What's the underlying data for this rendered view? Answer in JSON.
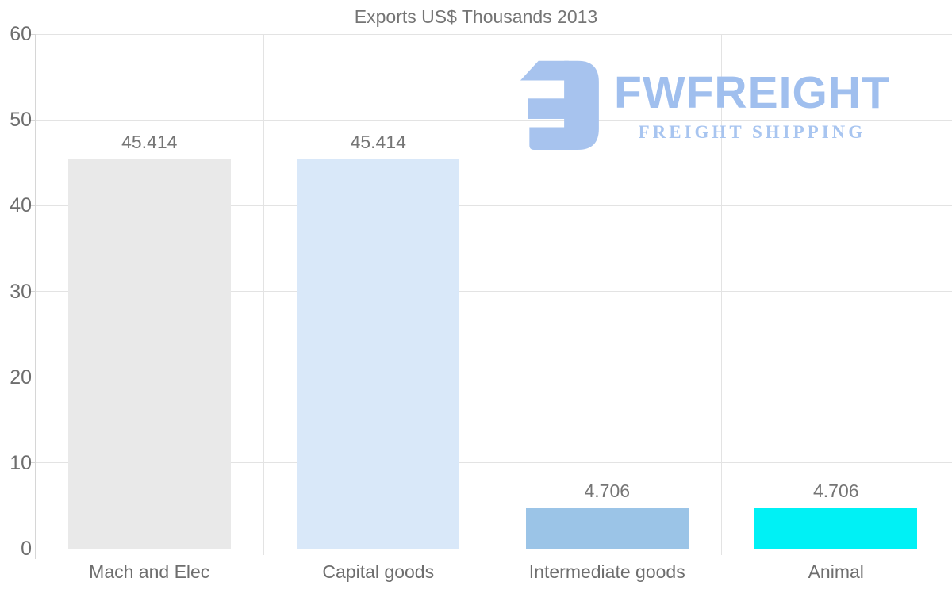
{
  "chart_data": {
    "type": "bar",
    "title": "Exports US$ Thousands 2013",
    "categories": [
      "Mach and Elec",
      "Capital goods",
      "Intermediate goods",
      "Animal"
    ],
    "values": [
      45.414,
      45.414,
      4.706,
      4.706
    ],
    "value_labels": [
      "45.414",
      "45.414",
      "4.706",
      "4.706"
    ],
    "bar_colors": [
      "#e9e9e9",
      "#d9e8f9",
      "#9bc4e7",
      "#00f1f5"
    ],
    "yticks": [
      0,
      10,
      20,
      30,
      40,
      50,
      60
    ],
    "ylim": [
      0,
      60
    ],
    "xlabel": "",
    "ylabel": "",
    "grid": "horizontal gridlines at each ytick and vertical gridlines at category boundaries, light gray",
    "legend": "none"
  },
  "logo": {
    "brand": "FWFREIGHT",
    "tagline": "FREIGHT SHIPPING",
    "mark_color": "#a7c3ee",
    "brand_color": "#a0bfee",
    "tagline_color": "#a8c5f0"
  },
  "colors": {
    "background": "#ffffff",
    "title_text": "#757575",
    "axis_text": "#6e6e6e",
    "gridline": "#e3e3e3",
    "axis_line": "#d6d6d6"
  }
}
